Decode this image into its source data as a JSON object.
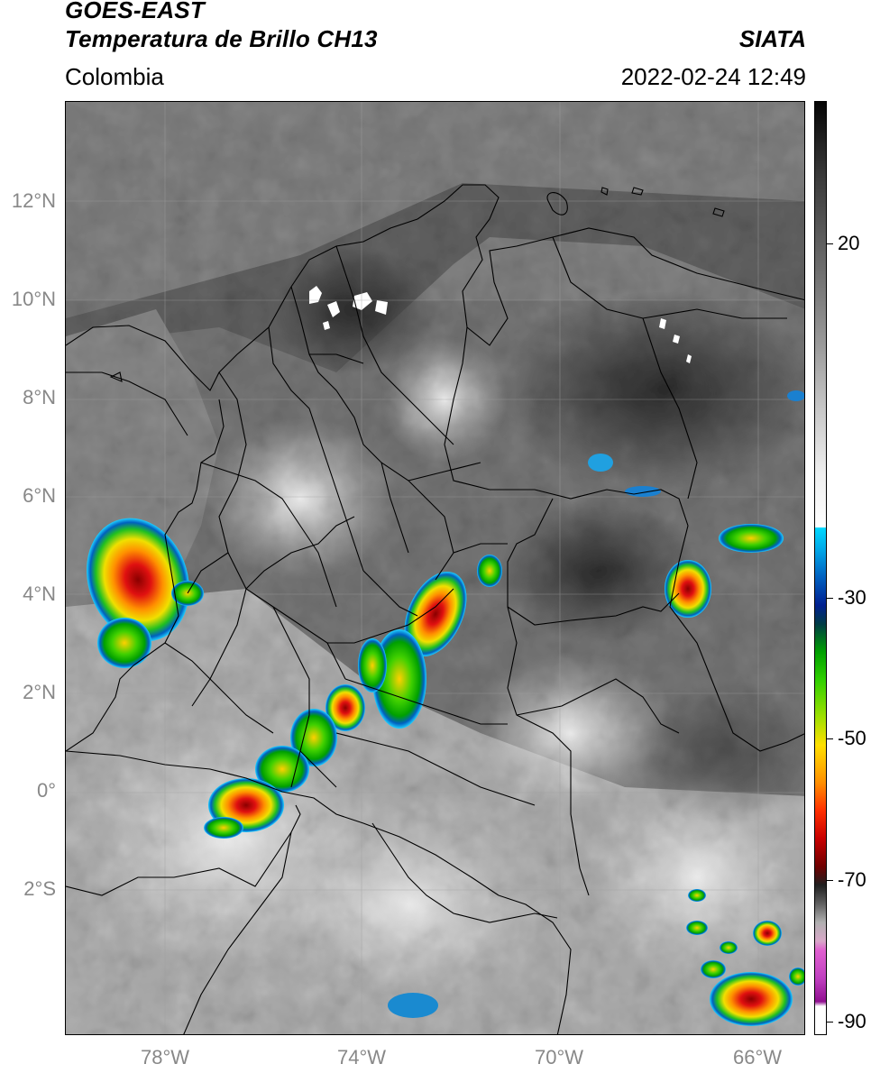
{
  "header": {
    "satellite": "GOES-EAST",
    "product": "Temperatura de Brillo CH13",
    "agency": "SIATA",
    "region": "Colombia",
    "datetime": "2022-02-24 12:49"
  },
  "map": {
    "lat_labels": [
      "12°N",
      "10°N",
      "8°N",
      "6°N",
      "4°N",
      "2°N",
      "0°",
      "2°S"
    ],
    "lon_labels": [
      "78°W",
      "74°W",
      "70°W",
      "66°W"
    ],
    "lat_range": [
      -4.6,
      14.0
    ],
    "lon_range": [
      -80.0,
      -65.0
    ],
    "basemap": "grayscale infrared brightness temperature with political borders",
    "convective_colors": [
      "#00c8ff",
      "#0050c8",
      "#00a000",
      "#40e000",
      "#ffe000",
      "#ff8000",
      "#e00000",
      "#600000"
    ]
  },
  "colorbar": {
    "tick_labels": [
      "20",
      "-30",
      "-50",
      "-70",
      "-90"
    ],
    "tick_values": [
      20,
      -30,
      -50,
      -70,
      -90
    ],
    "unit_range": [
      -92,
      35
    ]
  }
}
